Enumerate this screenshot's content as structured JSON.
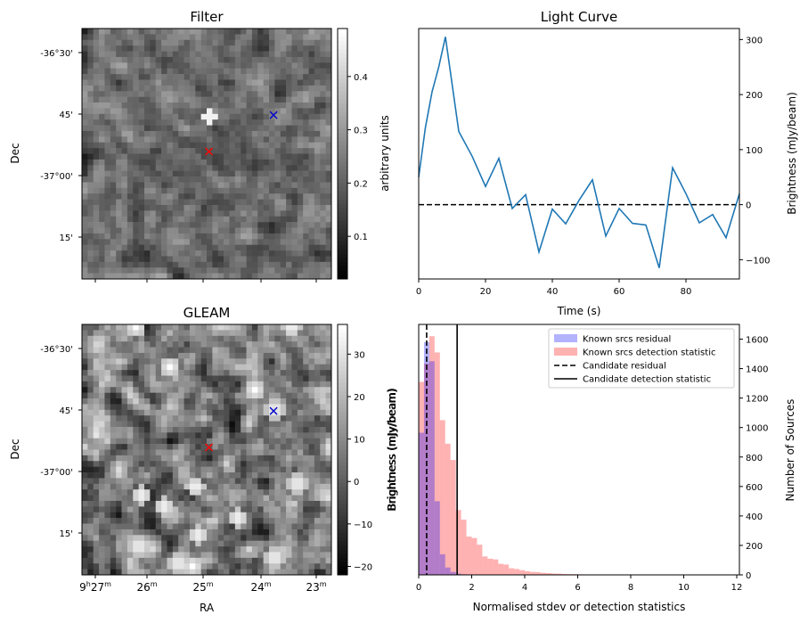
{
  "chart_data": [
    {
      "type": "heatmap",
      "name": "filter",
      "title": "Filter",
      "xlabel": "",
      "ylabel": "Dec",
      "y_tick_labels": [
        "-36°30'",
        "45'",
        "-37°00'",
        "15'"
      ],
      "colorbar": {
        "label": "arbitrary units",
        "ticks": [
          "0.1",
          "0.2",
          "0.3",
          "0.4"
        ],
        "range": [
          0.02,
          0.49
        ],
        "colormap": "gray"
      },
      "bright_source": {
        "row": 15,
        "col": 22
      },
      "markers": [
        {
          "symbol": "x",
          "color": "#ff0000",
          "col": 22.4,
          "row": 21.6
        },
        {
          "symbol": "x",
          "color": "#0000cc",
          "col": 33.8,
          "row": 15.2
        }
      ]
    },
    {
      "type": "line",
      "name": "light-curve",
      "title": "Light Curve",
      "xlabel": "Time (s)",
      "ylabel": "Brightness (mJy/beam)",
      "xlim": [
        0,
        96
      ],
      "ylim": [
        -135,
        320
      ],
      "x_ticks": [
        0,
        20,
        40,
        60,
        80
      ],
      "y_ticks": [
        -100,
        0,
        100,
        200,
        300
      ],
      "series": [
        {
          "name": "light curve",
          "color": "#1f77b4",
          "x": [
            0,
            2,
            4,
            6,
            8,
            12,
            16,
            20,
            24,
            28,
            32,
            36,
            40,
            44,
            48,
            52,
            56,
            60,
            64,
            68,
            72,
            76,
            80,
            84,
            88,
            92,
            96
          ],
          "values": [
            50,
            140,
            205,
            250,
            305,
            133,
            88,
            33,
            84,
            -7,
            18,
            -86,
            -8,
            -35,
            8,
            45,
            -57,
            -7,
            -34,
            -37,
            -115,
            67,
            20,
            -33,
            -18,
            -60,
            20
          ]
        }
      ],
      "reference_line": {
        "y": 0,
        "style": "dashed",
        "color": "#000000"
      }
    },
    {
      "type": "heatmap",
      "name": "gleam",
      "title": "GLEAM",
      "xlabel": "RA",
      "ylabel": "Dec",
      "x_tick_labels": [
        {
          "h": "9",
          "hs": "h",
          "m": "27",
          "ms": "m"
        },
        {
          "h": "",
          "hs": "",
          "m": "26",
          "ms": "m"
        },
        {
          "h": "",
          "hs": "",
          "m": "25",
          "ms": "m"
        },
        {
          "h": "",
          "hs": "",
          "m": "24",
          "ms": "m"
        },
        {
          "h": "",
          "hs": "",
          "m": "23",
          "ms": "m"
        }
      ],
      "y_tick_labels": [
        "-36°30'",
        "45'",
        "-37°00'",
        "15'"
      ],
      "colorbar": {
        "label": "Brightness (mJy/beam)",
        "ticks": [
          "−20",
          "−10",
          "0",
          "10",
          "20",
          "30"
        ],
        "tick_values": [
          -20,
          -10,
          0,
          10,
          20,
          30
        ],
        "range": [
          -22,
          37
        ],
        "colormap": "gray"
      },
      "bright_sources": [
        {
          "col": 34,
          "row": 15
        },
        {
          "col": 30.5,
          "row": 11.5
        },
        {
          "col": 15.5,
          "row": 7.5
        },
        {
          "col": 37,
          "row": 0.5
        },
        {
          "col": 9.5,
          "row": 0.5
        },
        {
          "col": 10.5,
          "row": 30
        },
        {
          "col": 14.5,
          "row": 32
        },
        {
          "col": 20,
          "row": 28.5
        },
        {
          "col": 27.5,
          "row": 34
        },
        {
          "col": 20.5,
          "row": 37
        },
        {
          "col": 19.5,
          "row": 42.5
        },
        {
          "col": 17,
          "row": 42
        },
        {
          "col": 38,
          "row": 28
        },
        {
          "col": 34,
          "row": 41
        },
        {
          "col": 10,
          "row": 39
        }
      ],
      "markers": [
        {
          "symbol": "x",
          "color": "#ff0000",
          "col": 22.4,
          "row": 21.6
        },
        {
          "symbol": "x",
          "color": "#0000cc",
          "col": 33.8,
          "row": 15.2
        }
      ]
    },
    {
      "type": "bar",
      "name": "histogram",
      "xlabel": "Normalised stdev or detection statistics",
      "ylabel_left": "Brightness (mJy/beam)",
      "ylabel_right": "Number of Sources",
      "xlim": [
        0,
        12.1
      ],
      "ylim": [
        0,
        1700
      ],
      "x_ticks": [
        0,
        2,
        4,
        6,
        8,
        10,
        12
      ],
      "y_ticks": [
        0,
        200,
        400,
        600,
        800,
        1000,
        1200,
        1400,
        1600
      ],
      "bin_width": 0.2,
      "series": [
        {
          "name": "Known srcs residual",
          "color": "#0000ff",
          "opacity": 0.3,
          "x_start": 0,
          "values": [
            965,
            1580,
            1450,
            500,
            140,
            50,
            20,
            8,
            4,
            2,
            1
          ]
        },
        {
          "name": "Known srcs detection statistic",
          "color": "#ff0000",
          "opacity": 0.3,
          "x_start": 0,
          "values": [
            1310,
            1435,
            1620,
            1510,
            1050,
            890,
            780,
            440,
            375,
            260,
            250,
            205,
            125,
            110,
            105,
            75,
            70,
            45,
            40,
            32,
            25,
            20,
            18,
            14,
            12,
            9,
            8,
            6,
            5,
            5,
            4,
            3,
            3,
            3,
            2,
            2,
            2,
            1,
            1,
            1
          ]
        }
      ],
      "vlines": [
        {
          "name": "Candidate residual",
          "x": 0.3,
          "style": "dashed",
          "color": "#000000"
        },
        {
          "name": "Candidate detection statistic",
          "x": 1.45,
          "style": "solid",
          "color": "#000000"
        }
      ],
      "legend": "top-right"
    }
  ]
}
